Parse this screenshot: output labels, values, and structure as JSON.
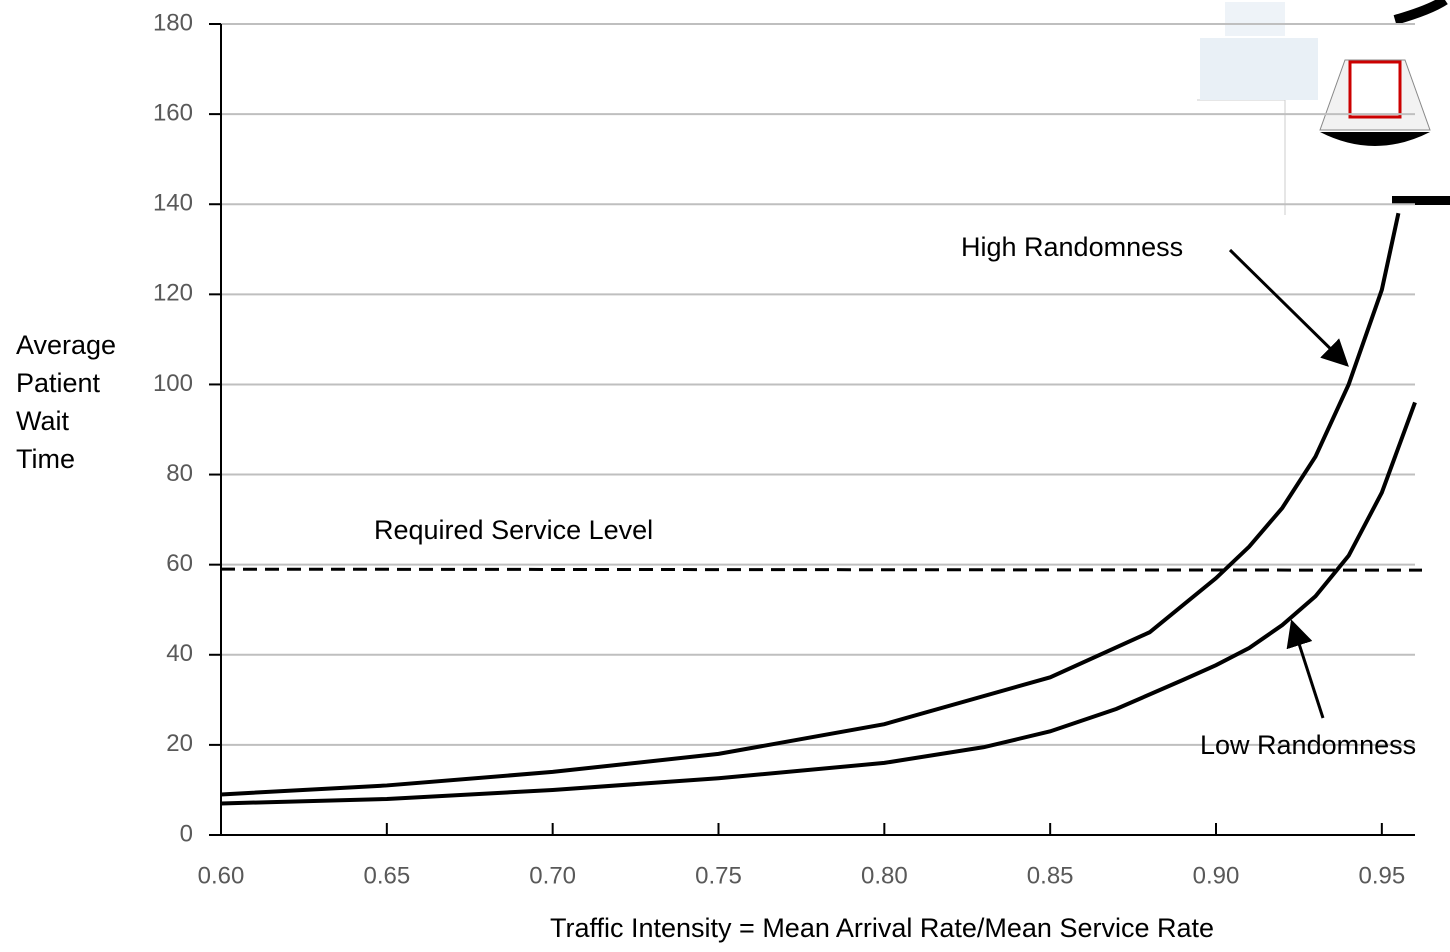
{
  "chart_data": {
    "type": "line",
    "x_label": "Traffic Intensity = Mean Arrival Rate/Mean Service Rate",
    "y_label": "Average Patient Wait Time",
    "xlim": [
      0.6,
      0.96
    ],
    "xticks": [
      {
        "value": 0.6,
        "label": "0.60"
      },
      {
        "value": 0.65,
        "label": "0.65"
      },
      {
        "value": 0.7,
        "label": "0.70"
      },
      {
        "value": 0.75,
        "label": "0.75"
      },
      {
        "value": 0.8,
        "label": "0.80"
      },
      {
        "value": 0.85,
        "label": "0.85"
      },
      {
        "value": 0.9,
        "label": "0.90"
      },
      {
        "value": 0.95,
        "label": "0.95"
      }
    ],
    "ylim": [
      0,
      180
    ],
    "yticks": [
      0,
      20,
      40,
      60,
      80,
      100,
      120,
      140,
      160,
      180
    ],
    "grid": true,
    "threshold": {
      "value": 59,
      "label": "Required Service Level"
    },
    "series": [
      {
        "name": "High Randomness",
        "color": "#000000",
        "x": [
          0.6,
          0.65,
          0.7,
          0.75,
          0.8,
          0.85,
          0.88,
          0.9,
          0.91,
          0.92,
          0.93,
          0.94,
          0.95,
          0.955
        ],
        "values": [
          9,
          11,
          14,
          18,
          24.6,
          35,
          45,
          57,
          64,
          72.6,
          84,
          100,
          121,
          138
        ]
      },
      {
        "name": "Low Randomness",
        "color": "#000000",
        "x": [
          0.6,
          0.65,
          0.7,
          0.75,
          0.8,
          0.83,
          0.85,
          0.87,
          0.89,
          0.9,
          0.91,
          0.92,
          0.93,
          0.94,
          0.95,
          0.96
        ],
        "values": [
          7,
          8,
          10,
          12.6,
          16,
          19.5,
          23,
          28,
          34.4,
          37.7,
          41.5,
          46.6,
          53,
          62,
          76,
          96
        ]
      }
    ]
  }
}
